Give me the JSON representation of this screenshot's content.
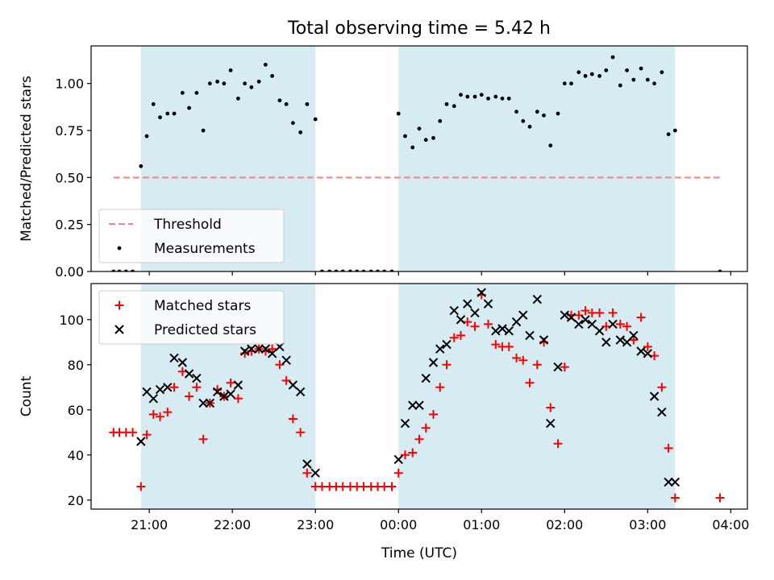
{
  "figure_title": "Total observing time = 5.42 h",
  "colors": {
    "span": "#add8e6",
    "threshold": "#ff8080",
    "measurement": "#000000",
    "matched": "#ff0000",
    "predicted": "#000000"
  },
  "chart_data": [
    {
      "type": "scatter",
      "ylabel": "Matched/Predicted stars",
      "xlabel": "",
      "ylim": [
        0,
        1.2
      ],
      "yticks": [
        0.0,
        0.25,
        0.5,
        0.75,
        1.0
      ],
      "ytick_labels": [
        "0.00",
        "0.25",
        "0.50",
        "0.75",
        "1.00"
      ],
      "xticks_hours": [
        21,
        22,
        23,
        24,
        25,
        26,
        27,
        28
      ],
      "shaded_intervals_hours": [
        [
          20.9,
          23.0
        ],
        [
          24.0,
          27.33
        ]
      ],
      "legend_position": "lower left",
      "series": [
        {
          "name": "Threshold",
          "kind": "line",
          "x_hours": [
            20.57,
            27.9
          ],
          "values": [
            0.5,
            0.5
          ]
        },
        {
          "name": "Measurements",
          "kind": "points",
          "x_hours": [
            20.57,
            20.64,
            20.72,
            20.8,
            20.9,
            20.97,
            21.05,
            21.13,
            21.22,
            21.3,
            21.4,
            21.48,
            21.57,
            21.65,
            21.73,
            21.82,
            21.9,
            21.98,
            22.07,
            22.15,
            22.23,
            22.32,
            22.4,
            22.48,
            22.57,
            22.65,
            22.73,
            22.82,
            22.9,
            23.0,
            23.08,
            23.17,
            23.25,
            23.33,
            23.42,
            23.5,
            23.58,
            23.67,
            23.75,
            23.83,
            23.92,
            24.0,
            24.08,
            24.17,
            24.25,
            24.33,
            24.42,
            24.5,
            24.58,
            24.67,
            24.75,
            24.83,
            24.92,
            25.0,
            25.08,
            25.17,
            25.25,
            25.33,
            25.42,
            25.5,
            25.58,
            25.67,
            25.75,
            25.83,
            25.92,
            26.0,
            26.08,
            26.17,
            26.25,
            26.33,
            26.42,
            26.5,
            26.58,
            26.67,
            26.75,
            26.83,
            26.92,
            27.0,
            27.08,
            27.17,
            27.25,
            27.33,
            27.87
          ],
          "values": [
            0.0,
            0.0,
            0.0,
            0.0,
            0.56,
            0.72,
            0.89,
            0.82,
            0.84,
            0.84,
            0.95,
            0.87,
            0.95,
            0.75,
            1.0,
            1.01,
            1.0,
            1.07,
            0.92,
            1.0,
            0.98,
            1.01,
            1.1,
            1.04,
            0.91,
            0.89,
            0.79,
            0.74,
            0.89,
            0.81,
            0.0,
            0.0,
            0.0,
            0.0,
            0.0,
            0.0,
            0.0,
            0.0,
            0.0,
            0.0,
            0.0,
            0.84,
            0.72,
            0.66,
            0.76,
            0.7,
            0.71,
            0.8,
            0.89,
            0.88,
            0.94,
            0.93,
            0.93,
            0.94,
            0.92,
            0.93,
            0.92,
            0.92,
            0.85,
            0.8,
            0.77,
            0.85,
            0.83,
            0.67,
            0.84,
            1.0,
            1.0,
            1.06,
            1.04,
            1.05,
            1.04,
            1.07,
            1.14,
            0.99,
            1.07,
            1.02,
            1.08,
            1.02,
            1.0,
            1.06,
            0.73,
            0.75,
            0.0
          ]
        }
      ]
    },
    {
      "type": "scatter",
      "ylabel": "Count",
      "xlabel": "Time (UTC)",
      "ylim": [
        16,
        116
      ],
      "yticks": [
        20,
        40,
        60,
        80,
        100
      ],
      "ytick_labels": [
        "20",
        "40",
        "60",
        "80",
        "100"
      ],
      "xticks_hours": [
        21,
        22,
        23,
        24,
        25,
        26,
        27,
        28
      ],
      "xtick_labels": [
        "21:00",
        "22:00",
        "23:00",
        "00:00",
        "01:00",
        "02:00",
        "03:00",
        "04:00"
      ],
      "shaded_intervals_hours": [
        [
          20.9,
          23.0
        ],
        [
          24.0,
          27.33
        ]
      ],
      "legend_position": "upper left",
      "series": [
        {
          "name": "Matched stars",
          "marker": "plus",
          "x_hours": [
            20.57,
            20.64,
            20.72,
            20.8,
            20.9,
            20.97,
            21.05,
            21.13,
            21.22,
            21.3,
            21.4,
            21.48,
            21.57,
            21.65,
            21.73,
            21.82,
            21.9,
            21.98,
            22.07,
            22.15,
            22.23,
            22.32,
            22.4,
            22.48,
            22.57,
            22.65,
            22.73,
            22.82,
            22.9,
            23.0,
            23.08,
            23.17,
            23.25,
            23.33,
            23.42,
            23.5,
            23.58,
            23.67,
            23.75,
            23.83,
            23.92,
            24.0,
            24.08,
            24.17,
            24.25,
            24.33,
            24.42,
            24.5,
            24.58,
            24.67,
            24.75,
            24.83,
            24.92,
            25.0,
            25.08,
            25.17,
            25.25,
            25.33,
            25.42,
            25.5,
            25.58,
            25.67,
            25.75,
            25.83,
            25.92,
            26.0,
            26.08,
            26.17,
            26.25,
            26.33,
            26.42,
            26.5,
            26.58,
            26.67,
            26.75,
            26.83,
            26.92,
            27.0,
            27.08,
            27.17,
            27.25,
            27.33,
            27.87
          ],
          "values": [
            50,
            50,
            50,
            50,
            26,
            49,
            58,
            57,
            59,
            70,
            77,
            66,
            70,
            47,
            63,
            69,
            66,
            72,
            65,
            85,
            86,
            87,
            86,
            87,
            80,
            73,
            56,
            50,
            32,
            26,
            26,
            26,
            26,
            26,
            26,
            26,
            26,
            26,
            26,
            26,
            26,
            32,
            40,
            41,
            47,
            52,
            58,
            70,
            80,
            92,
            93,
            99,
            97,
            111,
            98,
            89,
            88,
            88,
            83,
            82,
            72,
            80,
            90,
            61,
            45,
            79,
            102,
            102,
            104,
            103,
            103,
            97,
            103,
            98,
            97,
            91,
            101,
            88,
            84,
            70,
            43,
            21,
            21
          ]
        },
        {
          "name": "Predicted stars",
          "marker": "x",
          "x_hours": [
            20.9,
            20.97,
            21.05,
            21.13,
            21.22,
            21.3,
            21.4,
            21.48,
            21.57,
            21.65,
            21.73,
            21.82,
            21.9,
            21.98,
            22.07,
            22.15,
            22.23,
            22.32,
            22.4,
            22.48,
            22.57,
            22.65,
            22.73,
            22.82,
            22.9,
            23.0,
            24.0,
            24.08,
            24.17,
            24.25,
            24.33,
            24.42,
            24.5,
            24.58,
            24.67,
            24.75,
            24.83,
            24.92,
            25.0,
            25.08,
            25.17,
            25.25,
            25.33,
            25.42,
            25.5,
            25.58,
            25.67,
            25.75,
            25.83,
            25.92,
            26.0,
            26.08,
            26.17,
            26.25,
            26.33,
            26.42,
            26.5,
            26.58,
            26.67,
            26.75,
            26.83,
            26.92,
            27.0,
            27.08,
            27.17,
            27.25,
            27.33
          ],
          "values": [
            46,
            68,
            65,
            69,
            70,
            83,
            81,
            76,
            74,
            63,
            63,
            68,
            66,
            67,
            71,
            86,
            87,
            87,
            87,
            85,
            88,
            82,
            71,
            68,
            36,
            32,
            38,
            54,
            62,
            62,
            74,
            81,
            87,
            89,
            104,
            100,
            107,
            103,
            112,
            107,
            95,
            96,
            95,
            99,
            102,
            93,
            109,
            91,
            54,
            79,
            102,
            101,
            98,
            100,
            98,
            95,
            90,
            98,
            91,
            90,
            93,
            86,
            85,
            66,
            59,
            28,
            28
          ]
        }
      ]
    }
  ]
}
